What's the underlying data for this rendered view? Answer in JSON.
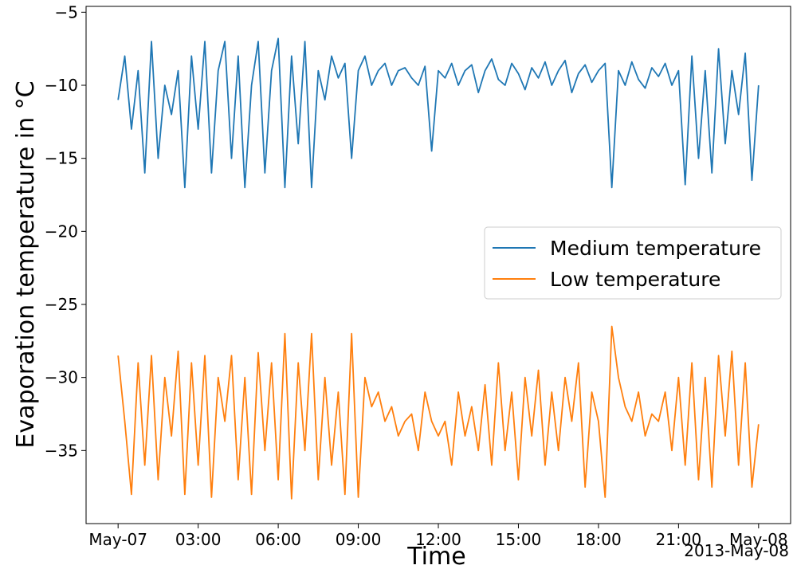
{
  "chart_data": {
    "type": "line",
    "xlabel": "Time",
    "ylabel": "Evaporation temperature in °C",
    "x_offset_label": "2013-May-08",
    "x": [
      0,
      0.25,
      0.5,
      0.75,
      1,
      1.25,
      1.5,
      1.75,
      2,
      2.25,
      2.5,
      2.75,
      3,
      3.25,
      3.5,
      3.75,
      4,
      4.25,
      4.5,
      4.75,
      5,
      5.25,
      5.5,
      5.75,
      6,
      6.25,
      6.5,
      6.75,
      7,
      7.25,
      7.5,
      7.75,
      8,
      8.25,
      8.5,
      8.75,
      9,
      9.25,
      9.5,
      9.75,
      10,
      10.25,
      10.5,
      10.75,
      11,
      11.25,
      11.5,
      11.75,
      12,
      12.25,
      12.5,
      12.75,
      13,
      13.25,
      13.5,
      13.75,
      14,
      14.25,
      14.5,
      14.75,
      15,
      15.25,
      15.5,
      15.75,
      16,
      16.25,
      16.5,
      16.75,
      17,
      17.25,
      17.5,
      17.75,
      18,
      18.25,
      18.5,
      18.75,
      19,
      19.25,
      19.5,
      19.75,
      20,
      20.25,
      20.5,
      20.75,
      21,
      21.25,
      21.5,
      21.75,
      22,
      22.25,
      22.5,
      22.75,
      23,
      23.25,
      23.5,
      23.75,
      24
    ],
    "series": [
      {
        "name": "Medium temperature",
        "color": "#1f77b4",
        "values": [
          -11,
          -8,
          -13,
          -9,
          -16,
          -7,
          -15,
          -10,
          -12,
          -9,
          -17,
          -8,
          -13,
          -7,
          -16,
          -9,
          -7,
          -15,
          -8,
          -17,
          -10,
          -7,
          -16,
          -9,
          -6.8,
          -17,
          -8,
          -14,
          -7,
          -17,
          -9,
          -11,
          -8,
          -9.5,
          -8.5,
          -15,
          -9,
          -8,
          -10,
          -9,
          -8.5,
          -10,
          -9,
          -8.8,
          -9.5,
          -10,
          -8.7,
          -14.5,
          -9,
          -9.5,
          -8.5,
          -10,
          -9,
          -8.6,
          -10.5,
          -9,
          -8.2,
          -9.6,
          -10,
          -8.5,
          -9.2,
          -10.3,
          -8.8,
          -9.5,
          -8.4,
          -10,
          -9,
          -8.3,
          -10.5,
          -9.2,
          -8.6,
          -9.8,
          -9,
          -8.5,
          -17,
          -9,
          -10,
          -8.4,
          -9.6,
          -10.2,
          -8.8,
          -9.4,
          -8.5,
          -10,
          -9,
          -16.8,
          -8,
          -15,
          -9,
          -16,
          -7.5,
          -14,
          -9,
          -12,
          -7.8,
          -16.5,
          -10
        ]
      },
      {
        "name": "Low temperature",
        "color": "#ff7f0e",
        "values": [
          -28.5,
          -33,
          -38,
          -29,
          -36,
          -28.5,
          -37,
          -30,
          -34,
          -28.2,
          -38,
          -29,
          -36,
          -28.5,
          -38.2,
          -30,
          -33,
          -28.5,
          -37,
          -30,
          -38,
          -28.3,
          -35,
          -29,
          -37,
          -27,
          -38.3,
          -29,
          -35,
          -27,
          -37,
          -30,
          -36,
          -31,
          -38,
          -27,
          -38.2,
          -30,
          -32,
          -31,
          -33,
          -32,
          -34,
          -33,
          -32.5,
          -35,
          -31,
          -33,
          -34,
          -33,
          -36,
          -31,
          -34,
          -32,
          -35,
          -30.5,
          -36,
          -29,
          -35,
          -31,
          -37,
          -30,
          -34,
          -29.5,
          -36,
          -31,
          -35,
          -30,
          -33,
          -29,
          -37.5,
          -31,
          -33,
          -38.2,
          -26.5,
          -30,
          -32,
          -33,
          -31,
          -34,
          -32.5,
          -33,
          -31,
          -35,
          -30,
          -36,
          -29,
          -37,
          -30,
          -37.5,
          -28.5,
          -34,
          -28.2,
          -36,
          -29,
          -37.5,
          -33.2
        ]
      }
    ],
    "xlim": [
      -1.2,
      25.2
    ],
    "ylim": [
      -40,
      -4.6
    ],
    "xticks": [
      {
        "value": 0,
        "label": "May-07"
      },
      {
        "value": 3,
        "label": "03:00"
      },
      {
        "value": 6,
        "label": "06:00"
      },
      {
        "value": 9,
        "label": "09:00"
      },
      {
        "value": 12,
        "label": "12:00"
      },
      {
        "value": 15,
        "label": "15:00"
      },
      {
        "value": 18,
        "label": "18:00"
      },
      {
        "value": 21,
        "label": "21:00"
      },
      {
        "value": 24,
        "label": "May-08"
      }
    ],
    "yticks": [
      {
        "value": -35,
        "label": "−35"
      },
      {
        "value": -30,
        "label": "−30"
      },
      {
        "value": -25,
        "label": "−25"
      },
      {
        "value": -20,
        "label": "−20"
      },
      {
        "value": -15,
        "label": "−15"
      },
      {
        "value": -10,
        "label": "−10"
      },
      {
        "value": -5,
        "label": "−5"
      }
    ],
    "legend": "center right"
  }
}
